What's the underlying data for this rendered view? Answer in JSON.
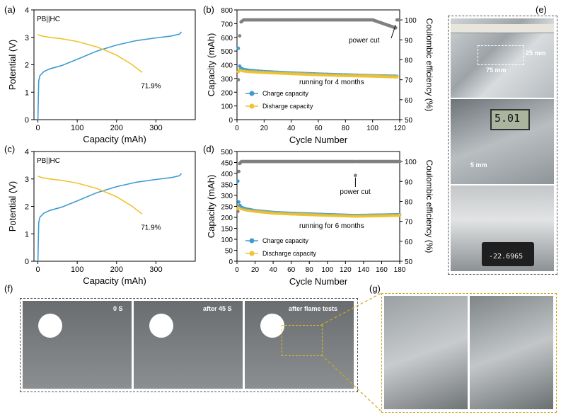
{
  "labels": {
    "a": "(a)",
    "b": "(b)",
    "c": "(c)",
    "d": "(d)",
    "e": "(e)",
    "f": "(f)",
    "g": "(g)"
  },
  "charts": {
    "a": {
      "legend": "PB||HC",
      "xlabel": "Capacity (mAh)",
      "ylabel": "Potential (V)",
      "annotation": "71.9%",
      "xticks": [
        "0",
        "100",
        "200",
        "300"
      ],
      "yticks": [
        "0",
        "1",
        "2",
        "3",
        "4"
      ]
    },
    "b": {
      "xlabel": "Cycle Number",
      "ylabel": "Capacity (mAh)",
      "y2label": "Coulombic efficiency (%)",
      "annotation_running": "running for 4 months",
      "annotation_cut": "power cut",
      "legend_charge": "Charge capacity",
      "legend_discharge": "Disharge capacity",
      "xticks": [
        "0",
        "20",
        "40",
        "60",
        "80",
        "100",
        "120"
      ],
      "yticks": [
        "0",
        "100",
        "200",
        "300",
        "400",
        "500",
        "600",
        "700",
        "800"
      ],
      "y2ticks": [
        "50",
        "60",
        "70",
        "80",
        "90",
        "100"
      ]
    },
    "c": {
      "legend": "PB||HC",
      "xlabel": "Capacity (mAh)",
      "ylabel": "Potential (V)",
      "annotation": "71.9%",
      "xticks": [
        "0",
        "100",
        "200",
        "300"
      ],
      "yticks": [
        "0",
        "1",
        "2",
        "3",
        "4"
      ]
    },
    "d": {
      "xlabel": "Cycle Number",
      "ylabel": "Capacity (mAh)",
      "y2label": "Coulombic efficiency (%)",
      "annotation_running": "running for 6 months",
      "annotation_cut": "power cut",
      "legend_charge": "Charge capacity",
      "legend_discharge": "Discharge capacity",
      "xticks": [
        "0",
        "20",
        "40",
        "60",
        "80",
        "100",
        "120",
        "140",
        "160",
        "180"
      ],
      "yticks": [
        "0",
        "50",
        "100",
        "150",
        "200",
        "250",
        "300",
        "350",
        "400",
        "450",
        "500"
      ],
      "y2ticks": [
        "50",
        "60",
        "70",
        "80",
        "90",
        "100"
      ]
    }
  },
  "photos": {
    "e_dim_width": "75 mm",
    "e_dim_height": "25 mm",
    "e_thickness": "5 mm",
    "e_caliper_reading": "5.01",
    "e_balance_reading": "-22.6965",
    "f_t0": "0 S",
    "f_t45": "after 45 S",
    "f_flame": "after flame tests"
  },
  "colors": {
    "charge": "#3d9bd2",
    "discharge": "#f2c230",
    "ce": "#808080"
  },
  "chart_data": [
    {
      "type": "line",
      "id": "a",
      "xlabel": "Capacity (mAh)",
      "ylabel": "Potential (V)",
      "xlim": [
        -10,
        400
      ],
      "ylim": [
        0,
        4
      ],
      "series": [
        {
          "name": "charge",
          "x": [
            0,
            2,
            5,
            15,
            30,
            60,
            100,
            150,
            200,
            250,
            300,
            340,
            360,
            365
          ],
          "y": [
            0.0,
            1.4,
            1.6,
            1.75,
            1.85,
            1.97,
            2.2,
            2.5,
            2.72,
            2.88,
            2.98,
            3.05,
            3.12,
            3.2
          ]
        },
        {
          "name": "discharge",
          "x": [
            0,
            10,
            30,
            60,
            100,
            150,
            200,
            240,
            265
          ],
          "y": [
            3.1,
            3.05,
            3.0,
            2.95,
            2.85,
            2.65,
            2.35,
            2.0,
            1.72
          ]
        }
      ]
    },
    {
      "type": "scatter",
      "id": "b",
      "xlabel": "Cycle Number",
      "ylabel": "Capacity (mAh)",
      "xlim": [
        0,
        120
      ],
      "ylim": [
        0,
        800
      ],
      "y2lim": [
        50,
        105
      ],
      "series": [
        {
          "name": "Charge capacity",
          "x": [
            1,
            2,
            3,
            5,
            10,
            20,
            40,
            60,
            80,
            100,
            118
          ],
          "y": [
            520,
            390,
            375,
            365,
            358,
            350,
            340,
            332,
            326,
            320,
            316
          ]
        },
        {
          "name": "Disharge capacity",
          "x": [
            1,
            2,
            3,
            5,
            10,
            20,
            40,
            60,
            80,
            100,
            118
          ],
          "y": [
            350,
            365,
            360,
            355,
            350,
            345,
            336,
            328,
            322,
            318,
            312
          ]
        },
        {
          "name": "Coulombic efficiency",
          "x": [
            1,
            2,
            3,
            5,
            10,
            20,
            40,
            60,
            80,
            100,
            117,
            118,
            119
          ],
          "y": [
            70,
            92,
            99,
            100,
            100,
            100,
            100,
            100,
            100,
            100,
            96,
            100,
            100
          ]
        }
      ]
    },
    {
      "type": "line",
      "id": "c",
      "xlabel": "Capacity (mAh)",
      "ylabel": "Potential (V)",
      "xlim": [
        -10,
        400
      ],
      "ylim": [
        0,
        4
      ],
      "series": [
        {
          "name": "charge",
          "x": [
            0,
            2,
            5,
            15,
            30,
            60,
            100,
            150,
            200,
            250,
            300,
            340,
            360,
            365
          ],
          "y": [
            0.0,
            1.4,
            1.6,
            1.75,
            1.85,
            1.97,
            2.2,
            2.5,
            2.72,
            2.88,
            2.98,
            3.05,
            3.12,
            3.2
          ]
        },
        {
          "name": "discharge",
          "x": [
            0,
            10,
            30,
            60,
            100,
            150,
            200,
            240,
            265
          ],
          "y": [
            3.1,
            3.05,
            3.0,
            2.95,
            2.85,
            2.65,
            2.35,
            2.0,
            1.72
          ]
        }
      ]
    },
    {
      "type": "scatter",
      "id": "d",
      "xlabel": "Cycle Number",
      "ylabel": "Capacity (mAh)",
      "xlim": [
        0,
        180
      ],
      "ylim": [
        0,
        500
      ],
      "y2lim": [
        50,
        105
      ],
      "series": [
        {
          "name": "Charge capacity",
          "x": [
            1,
            2,
            3,
            5,
            10,
            20,
            40,
            60,
            80,
            100,
            130,
            160,
            180
          ],
          "y": [
            365,
            270,
            255,
            245,
            238,
            230,
            222,
            218,
            215,
            212,
            208,
            210,
            212
          ]
        },
        {
          "name": "Discharge capacity",
          "x": [
            1,
            2,
            3,
            5,
            10,
            20,
            40,
            60,
            80,
            100,
            130,
            160,
            180
          ],
          "y": [
            240,
            250,
            245,
            240,
            234,
            228,
            220,
            216,
            213,
            210,
            206,
            208,
            210
          ]
        },
        {
          "name": "Coulombic efficiency",
          "x": [
            1,
            2,
            3,
            5,
            10,
            20,
            40,
            60,
            80,
            100,
            130,
            131,
            132,
            160,
            180
          ],
          "y": [
            75,
            95,
            99,
            100,
            100,
            100,
            100,
            100,
            100,
            100,
            100,
            93,
            100,
            100,
            100
          ]
        }
      ]
    }
  ]
}
